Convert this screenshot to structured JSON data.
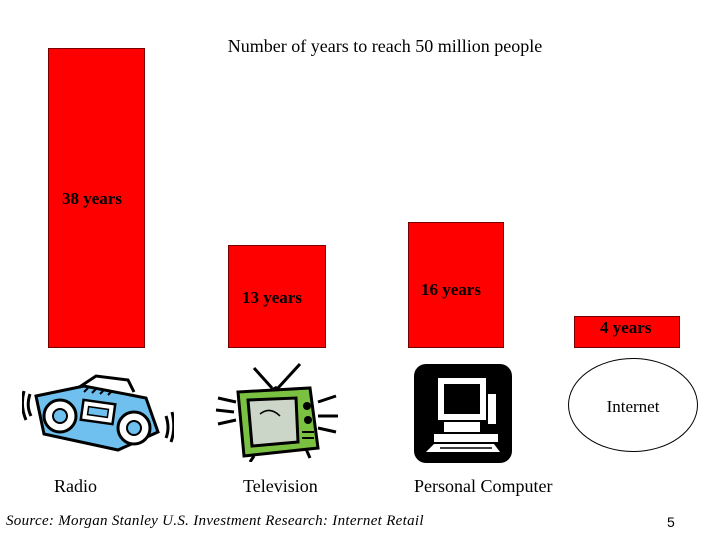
{
  "chart_data": {
    "type": "bar",
    "title": "Number of years to reach 50 million people",
    "categories": [
      "Radio",
      "Television",
      "Personal Computer",
      "Internet"
    ],
    "values": [
      38,
      13,
      16,
      4
    ],
    "data_labels": [
      "38 years",
      "13 years",
      "16 years",
      "4 years"
    ],
    "xlabel": "",
    "ylabel": "",
    "ylim": [
      0,
      38
    ],
    "grid": false,
    "legend": "none",
    "bar_color": "#ff0000"
  },
  "icons": [
    "radio-icon",
    "television-icon",
    "personal-computer-icon"
  ],
  "source": "Source: Morgan Stanley U.S. Investment Research: Internet Retail",
  "page_number": "5"
}
